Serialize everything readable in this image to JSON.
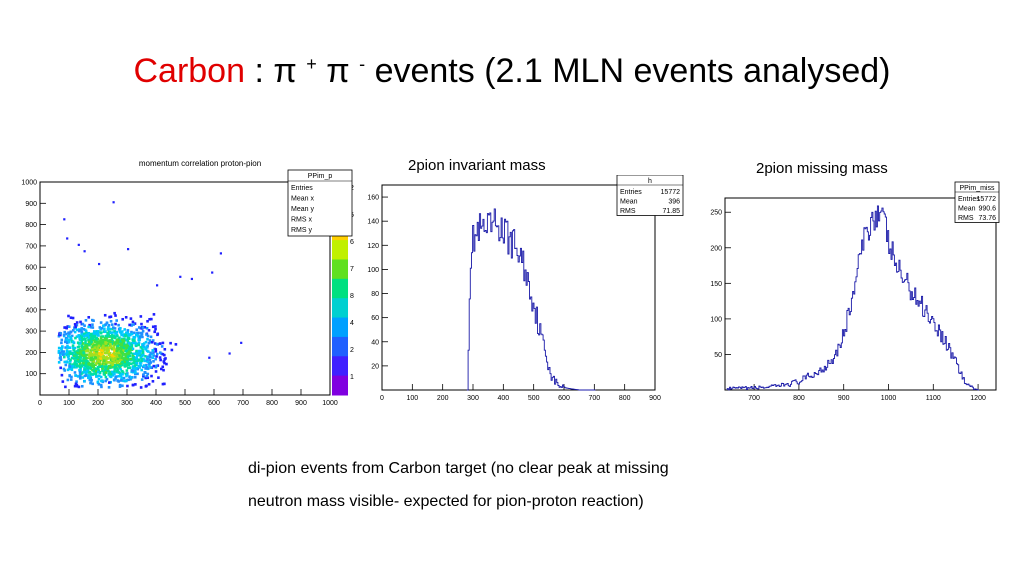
{
  "slide": {
    "title_red": "Carbon",
    "title_colon": " :  ",
    "title_pi1": "π ",
    "title_plus": "+",
    "title_pi2": " π ",
    "title_minus": "-",
    "title_rest": "  events (2.1 MLN events analysed)",
    "caption_line1": "di-pion events from Carbon target (no clear peak at missing",
    "caption_line2": "neutron mass visible- expected for pion-proton reaction)"
  },
  "chart_data": [
    {
      "type": "heatmap",
      "title": "momentum correlation proton-pion",
      "xlim": [
        0,
        1000
      ],
      "ylim": [
        0,
        1000
      ],
      "x_ticks": [
        0,
        100,
        200,
        300,
        400,
        500,
        600,
        700,
        800,
        900,
        1000
      ],
      "y_ticks": [
        100,
        200,
        300,
        400,
        500,
        600,
        700,
        800,
        900,
        1000
      ],
      "stats": {
        "name": "PPim_p",
        "labels": [
          "Entries",
          "Mean x",
          "Mean y",
          "RMS x",
          "RMS y"
        ]
      },
      "colorbar_labels": [
        "2",
        "5",
        "6",
        "7",
        "8",
        "4",
        "2",
        "1"
      ],
      "cluster": {
        "peak_x": 220,
        "peak_y": 200,
        "sigma_x": 110,
        "sigma_y": 90
      }
    },
    {
      "type": "line",
      "title": "2pion invariant mass",
      "xlim": [
        0,
        900
      ],
      "ylim": [
        0,
        170
      ],
      "x_ticks": [
        0,
        100,
        200,
        300,
        400,
        500,
        600,
        700,
        800,
        900
      ],
      "y_ticks": [
        20,
        40,
        60,
        80,
        100,
        120,
        140,
        160
      ],
      "stats": {
        "name": "h",
        "rows": [
          [
            "Entries",
            "15772"
          ],
          [
            "Mean",
            "396"
          ],
          [
            "RMS",
            "71.85"
          ]
        ]
      },
      "x": [
        280,
        290,
        300,
        320,
        340,
        360,
        380,
        400,
        420,
        440,
        460,
        480,
        500,
        520,
        540,
        560,
        580,
        600,
        620,
        650,
        700
      ],
      "y": [
        0,
        110,
        125,
        132,
        130,
        135,
        138,
        130,
        125,
        118,
        108,
        90,
        70,
        48,
        28,
        10,
        4,
        2,
        1,
        0,
        0
      ]
    },
    {
      "type": "line",
      "title": "2pion missing mass",
      "xlim": [
        635,
        1240
      ],
      "ylim": [
        0,
        270
      ],
      "x_ticks": [
        700,
        800,
        900,
        1000,
        1100,
        1200
      ],
      "y_ticks": [
        50,
        100,
        150,
        200,
        250
      ],
      "stats": {
        "name": "PPim_miss",
        "rows": [
          [
            "Entries",
            "15772"
          ],
          [
            "Mean",
            "990.6"
          ],
          [
            "RMS",
            "73.76"
          ]
        ]
      },
      "x": [
        640,
        700,
        750,
        800,
        850,
        880,
        900,
        920,
        940,
        960,
        975,
        990,
        1000,
        1020,
        1040,
        1060,
        1080,
        1100,
        1120,
        1150,
        1170,
        1190,
        1200
      ],
      "y": [
        2,
        3,
        5,
        12,
        28,
        50,
        80,
        135,
        200,
        240,
        250,
        235,
        205,
        170,
        150,
        130,
        115,
        95,
        75,
        40,
        10,
        2,
        0
      ]
    }
  ]
}
